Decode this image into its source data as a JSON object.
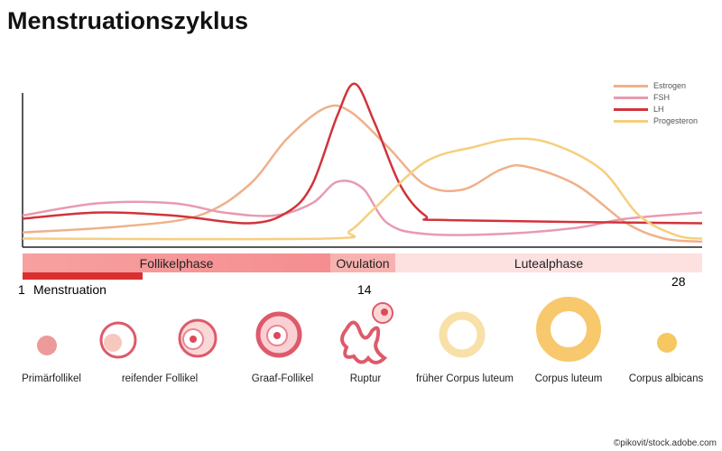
{
  "title": "Menstruationszyklus",
  "legend": [
    {
      "name": "Estrogen",
      "color": "#f0b08a"
    },
    {
      "name": "FSH",
      "color": "#e99ab0"
    },
    {
      "name": "LH",
      "color": "#d0343a"
    },
    {
      "name": "Progesteron",
      "color": "#f5cf7e"
    }
  ],
  "chart_data": {
    "type": "line",
    "xlabel": "",
    "ylabel": "",
    "xlim": [
      1,
      28
    ],
    "ylim": [
      0,
      110
    ],
    "grid": false,
    "legend_position": "top-right",
    "series": [
      {
        "name": "Estrogen",
        "x": [
          1,
          5,
          8,
          10,
          11.5,
          13,
          14,
          15.5,
          17,
          18.5,
          20,
          21,
          23,
          25,
          26.5,
          28
        ],
        "y": [
          9,
          13,
          20,
          40,
          70,
          90,
          88,
          65,
          40,
          37,
          50,
          52,
          40,
          15,
          5,
          3
        ]
      },
      {
        "name": "FSH",
        "x": [
          1,
          4,
          7,
          9,
          11,
          12.5,
          13.5,
          14.5,
          15.5,
          17,
          20,
          23,
          25,
          28
        ],
        "y": [
          20,
          28,
          28,
          22,
          20,
          28,
          42,
          38,
          15,
          8,
          8,
          12,
          18,
          22
        ]
      },
      {
        "name": "LH",
        "x": [
          1,
          4,
          7,
          10,
          11.5,
          12.5,
          13.5,
          14.2,
          15,
          16,
          17,
          18,
          28
        ],
        "y": [
          18,
          22,
          20,
          15,
          22,
          40,
          85,
          106,
          80,
          40,
          20,
          17,
          15
        ]
      },
      {
        "name": "Progesteron",
        "x": [
          1,
          13,
          14,
          15,
          17,
          19,
          20.5,
          22,
          24,
          25.5,
          27,
          28
        ],
        "y": [
          5,
          5,
          10,
          25,
          55,
          65,
          70,
          67,
          50,
          20,
          7,
          5
        ]
      }
    ]
  },
  "phases": {
    "follicular": "Follikelphase",
    "ovulation": "Ovulation",
    "luteal": "Lutealphase",
    "menstruation": "Menstruation",
    "day_start": "1",
    "day_ovulation": "14",
    "day_end": "28"
  },
  "stages": [
    "Primärfollikel",
    "reifender Follikel",
    "Graaf-Follikel",
    "Ruptur",
    "früher Corpus luteum",
    "Corpus luteum",
    "Corpus albicans"
  ],
  "credit": "©pikovit/stock.adobe.com"
}
